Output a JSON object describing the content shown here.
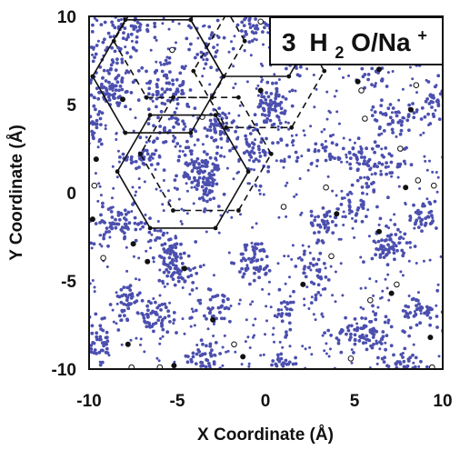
{
  "chart_data": {
    "type": "scatter",
    "annotation": {
      "n": "3",
      "h": "H",
      "sub": "2",
      "o": "O/Na",
      "sup": "+"
    },
    "xlabel": "X Coordinate (Å)",
    "ylabel": "Y Coordinate (Å)",
    "xlim": [
      -10,
      10
    ],
    "ylim": [
      -10,
      10
    ],
    "xticks": [
      "-10",
      "-5",
      "0",
      "5",
      "10"
    ],
    "yticks": [
      "10",
      "5",
      "0",
      "-5",
      "-10"
    ],
    "grid": false,
    "legend": "none",
    "colors": {
      "water": "#4b4fae",
      "filled_site": "#111111",
      "open_site": "#111111",
      "lattice": "#111111"
    },
    "series": [
      {
        "kind": "water-clusters",
        "marker": "small-dot",
        "clusters": [
          {
            "x": -8.6,
            "y": 7.5,
            "sx": 0.9,
            "sy": 1.5,
            "n": 90
          },
          {
            "x": -9.0,
            "y": 5.6,
            "sx": 0.6,
            "sy": 0.5,
            "n": 40
          },
          {
            "x": -9.6,
            "y": 3.8,
            "sx": 0.4,
            "sy": 0.6,
            "n": 25
          },
          {
            "x": -7.4,
            "y": 9.5,
            "sx": 0.8,
            "sy": 0.5,
            "n": 30
          },
          {
            "x": -5.7,
            "y": 6.0,
            "sx": 0.6,
            "sy": 0.9,
            "n": 70
          },
          {
            "x": -7.0,
            "y": 2.0,
            "sx": 0.5,
            "sy": 0.4,
            "n": 35
          },
          {
            "x": -5.0,
            "y": 3.6,
            "sx": 1.0,
            "sy": 1.0,
            "n": 60
          },
          {
            "x": -4.2,
            "y": 1.1,
            "sx": 0.5,
            "sy": 0.5,
            "n": 45
          },
          {
            "x": -3.2,
            "y": 0.7,
            "sx": 0.3,
            "sy": 0.7,
            "n": 70
          },
          {
            "x": -2.6,
            "y": 3.6,
            "sx": 0.5,
            "sy": 0.6,
            "n": 45
          },
          {
            "x": -1.0,
            "y": 3.0,
            "sx": 0.5,
            "sy": 0.6,
            "n": 25
          },
          {
            "x": 0.3,
            "y": 5.0,
            "sx": 0.4,
            "sy": 0.6,
            "n": 70
          },
          {
            "x": 0.0,
            "y": 2.3,
            "sx": 0.6,
            "sy": 0.5,
            "n": 30
          },
          {
            "x": -3.3,
            "y": 8.3,
            "sx": 0.5,
            "sy": 0.7,
            "n": 30
          },
          {
            "x": -0.8,
            "y": 9.2,
            "sx": 0.8,
            "sy": 0.5,
            "n": 40
          },
          {
            "x": 1.5,
            "y": 7.6,
            "sx": 0.6,
            "sy": 0.6,
            "n": 25
          },
          {
            "x": -8.3,
            "y": -1.8,
            "sx": 0.9,
            "sy": 0.5,
            "n": 70
          },
          {
            "x": -5.5,
            "y": -3.4,
            "sx": 0.4,
            "sy": 0.7,
            "n": 60
          },
          {
            "x": -4.8,
            "y": -4.5,
            "sx": 0.5,
            "sy": 0.5,
            "n": 35
          },
          {
            "x": -7.8,
            "y": -5.8,
            "sx": 0.3,
            "sy": 0.4,
            "n": 25
          },
          {
            "x": -6.5,
            "y": -7.0,
            "sx": 1.0,
            "sy": 0.5,
            "n": 70
          },
          {
            "x": -9.5,
            "y": -8.5,
            "sx": 0.4,
            "sy": 0.7,
            "n": 40
          },
          {
            "x": -2.8,
            "y": -6.5,
            "sx": 0.7,
            "sy": 0.5,
            "n": 35
          },
          {
            "x": -0.6,
            "y": -3.9,
            "sx": 0.5,
            "sy": 0.6,
            "n": 60
          },
          {
            "x": -3.4,
            "y": -9.3,
            "sx": 0.5,
            "sy": 0.6,
            "n": 50
          },
          {
            "x": 1.0,
            "y": -6.8,
            "sx": 0.4,
            "sy": 0.6,
            "n": 25
          },
          {
            "x": 3.3,
            "y": -1.7,
            "sx": 0.4,
            "sy": 0.5,
            "n": 40
          },
          {
            "x": 4.0,
            "y": 2.3,
            "sx": 1.2,
            "sy": 0.4,
            "n": 45
          },
          {
            "x": 6.2,
            "y": 1.6,
            "sx": 0.9,
            "sy": 0.7,
            "n": 60
          },
          {
            "x": 5.1,
            "y": -0.7,
            "sx": 0.6,
            "sy": 0.6,
            "n": 30
          },
          {
            "x": 2.8,
            "y": -4.6,
            "sx": 0.5,
            "sy": 0.7,
            "n": 35
          },
          {
            "x": 5.5,
            "y": -8.0,
            "sx": 0.9,
            "sy": 0.6,
            "n": 90
          },
          {
            "x": 7.0,
            "y": -3.0,
            "sx": 0.5,
            "sy": 0.5,
            "n": 60
          },
          {
            "x": 8.8,
            "y": -6.8,
            "sx": 0.6,
            "sy": 0.5,
            "n": 45
          },
          {
            "x": 8.9,
            "y": -1.4,
            "sx": 0.4,
            "sy": 0.5,
            "n": 35
          },
          {
            "x": 7.2,
            "y": 4.3,
            "sx": 0.7,
            "sy": 0.4,
            "n": 45
          },
          {
            "x": 9.5,
            "y": 5.2,
            "sx": 0.4,
            "sy": 0.6,
            "n": 35
          },
          {
            "x": 2.7,
            "y": 9.0,
            "sx": 0.9,
            "sy": 0.5,
            "n": 30
          },
          {
            "x": 5.8,
            "y": 7.2,
            "sx": 0.6,
            "sy": 0.8,
            "n": 30
          },
          {
            "x": 7.8,
            "y": -9.7,
            "sx": 0.6,
            "sy": 0.3,
            "n": 40
          },
          {
            "x": 0.9,
            "y": -9.6,
            "sx": 0.5,
            "sy": 0.3,
            "n": 20
          },
          {
            "x": 8.5,
            "y": 7.8,
            "sx": 0.4,
            "sy": 0.5,
            "n": 20
          }
        ]
      },
      {
        "kind": "filled-sites",
        "marker": "filled-circle",
        "points": [
          [
            -9.8,
            -1.5
          ],
          [
            -7.8,
            -8.6
          ],
          [
            -6.7,
            -3.9
          ],
          [
            -5.2,
            -9.8
          ],
          [
            -4.6,
            -4.3
          ],
          [
            -8.1,
            5.3
          ],
          [
            -0.3,
            5.8
          ],
          [
            2.1,
            -5.2
          ],
          [
            4.0,
            -1.2
          ],
          [
            5.2,
            6.3
          ],
          [
            6.4,
            7.0
          ],
          [
            6.4,
            -2.2
          ],
          [
            7.9,
            0.3
          ],
          [
            9.3,
            -8.2
          ],
          [
            -9.6,
            1.9
          ],
          [
            -1.3,
            -9.3
          ],
          [
            3.4,
            7.5
          ],
          [
            7.1,
            -5.7
          ],
          [
            -3.0,
            -7.2
          ],
          [
            -7.5,
            -2.9
          ],
          [
            8.2,
            4.7
          ]
        ]
      },
      {
        "kind": "open-sites",
        "marker": "open-circle",
        "points": [
          [
            -9.7,
            0.4
          ],
          [
            -9.2,
            -3.7
          ],
          [
            -7.6,
            -9.9
          ],
          [
            -5.3,
            8.1
          ],
          [
            -0.3,
            9.7
          ],
          [
            3.4,
            0.3
          ],
          [
            5.6,
            4.2
          ],
          [
            5.9,
            -6.1
          ],
          [
            7.4,
            -5.2
          ],
          [
            8.6,
            0.7
          ],
          [
            9.5,
            0.4
          ],
          [
            9.4,
            -9.9
          ],
          [
            3.7,
            -3.6
          ],
          [
            1.0,
            -0.8
          ],
          [
            8.5,
            6.1
          ],
          [
            5.4,
            5.8
          ],
          [
            -1.8,
            -8.6
          ],
          [
            -6.0,
            -9.9
          ],
          [
            7.6,
            2.5
          ],
          [
            4.8,
            -9.4
          ],
          [
            -3.6,
            4.3
          ],
          [
            6.4,
            9.9
          ]
        ]
      }
    ]
  }
}
